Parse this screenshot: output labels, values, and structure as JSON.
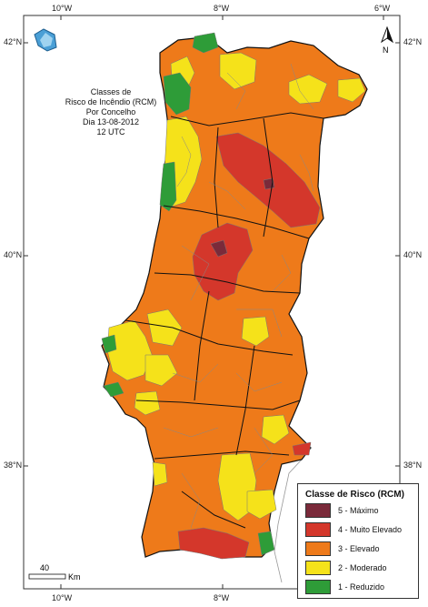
{
  "map": {
    "title_lines": [
      "Classes de",
      "Risco de Incêndio (RCM)",
      "Por Concelho",
      "Dia 13-08-2012",
      "12 UTC"
    ],
    "lon_ticks": [
      "10°W",
      "8°W",
      "6°W"
    ],
    "lat_ticks": [
      "42°N",
      "40°N",
      "38°N"
    ],
    "north_label": "N",
    "scale_value": "40",
    "scale_unit": "Km",
    "logo_text": "IM"
  },
  "legend": {
    "title": "Classe de Risco (RCM)",
    "items": [
      {
        "label": "5 - Máximo",
        "color": "#7a2a3a"
      },
      {
        "label": "4 - Muito Elevado",
        "color": "#d4372b"
      },
      {
        "label": "3 - Elevado",
        "color": "#ee7a1a"
      },
      {
        "label": "2 - Moderado",
        "color": "#f5e21a"
      },
      {
        "label": "1 - Reduzido",
        "color": "#2e9c38"
      }
    ]
  },
  "colors": {
    "sea": "#ffffff",
    "frame": "#333333",
    "spain_fill": "#ffffff",
    "border_major": "#111111",
    "border_minor": "#888888"
  }
}
